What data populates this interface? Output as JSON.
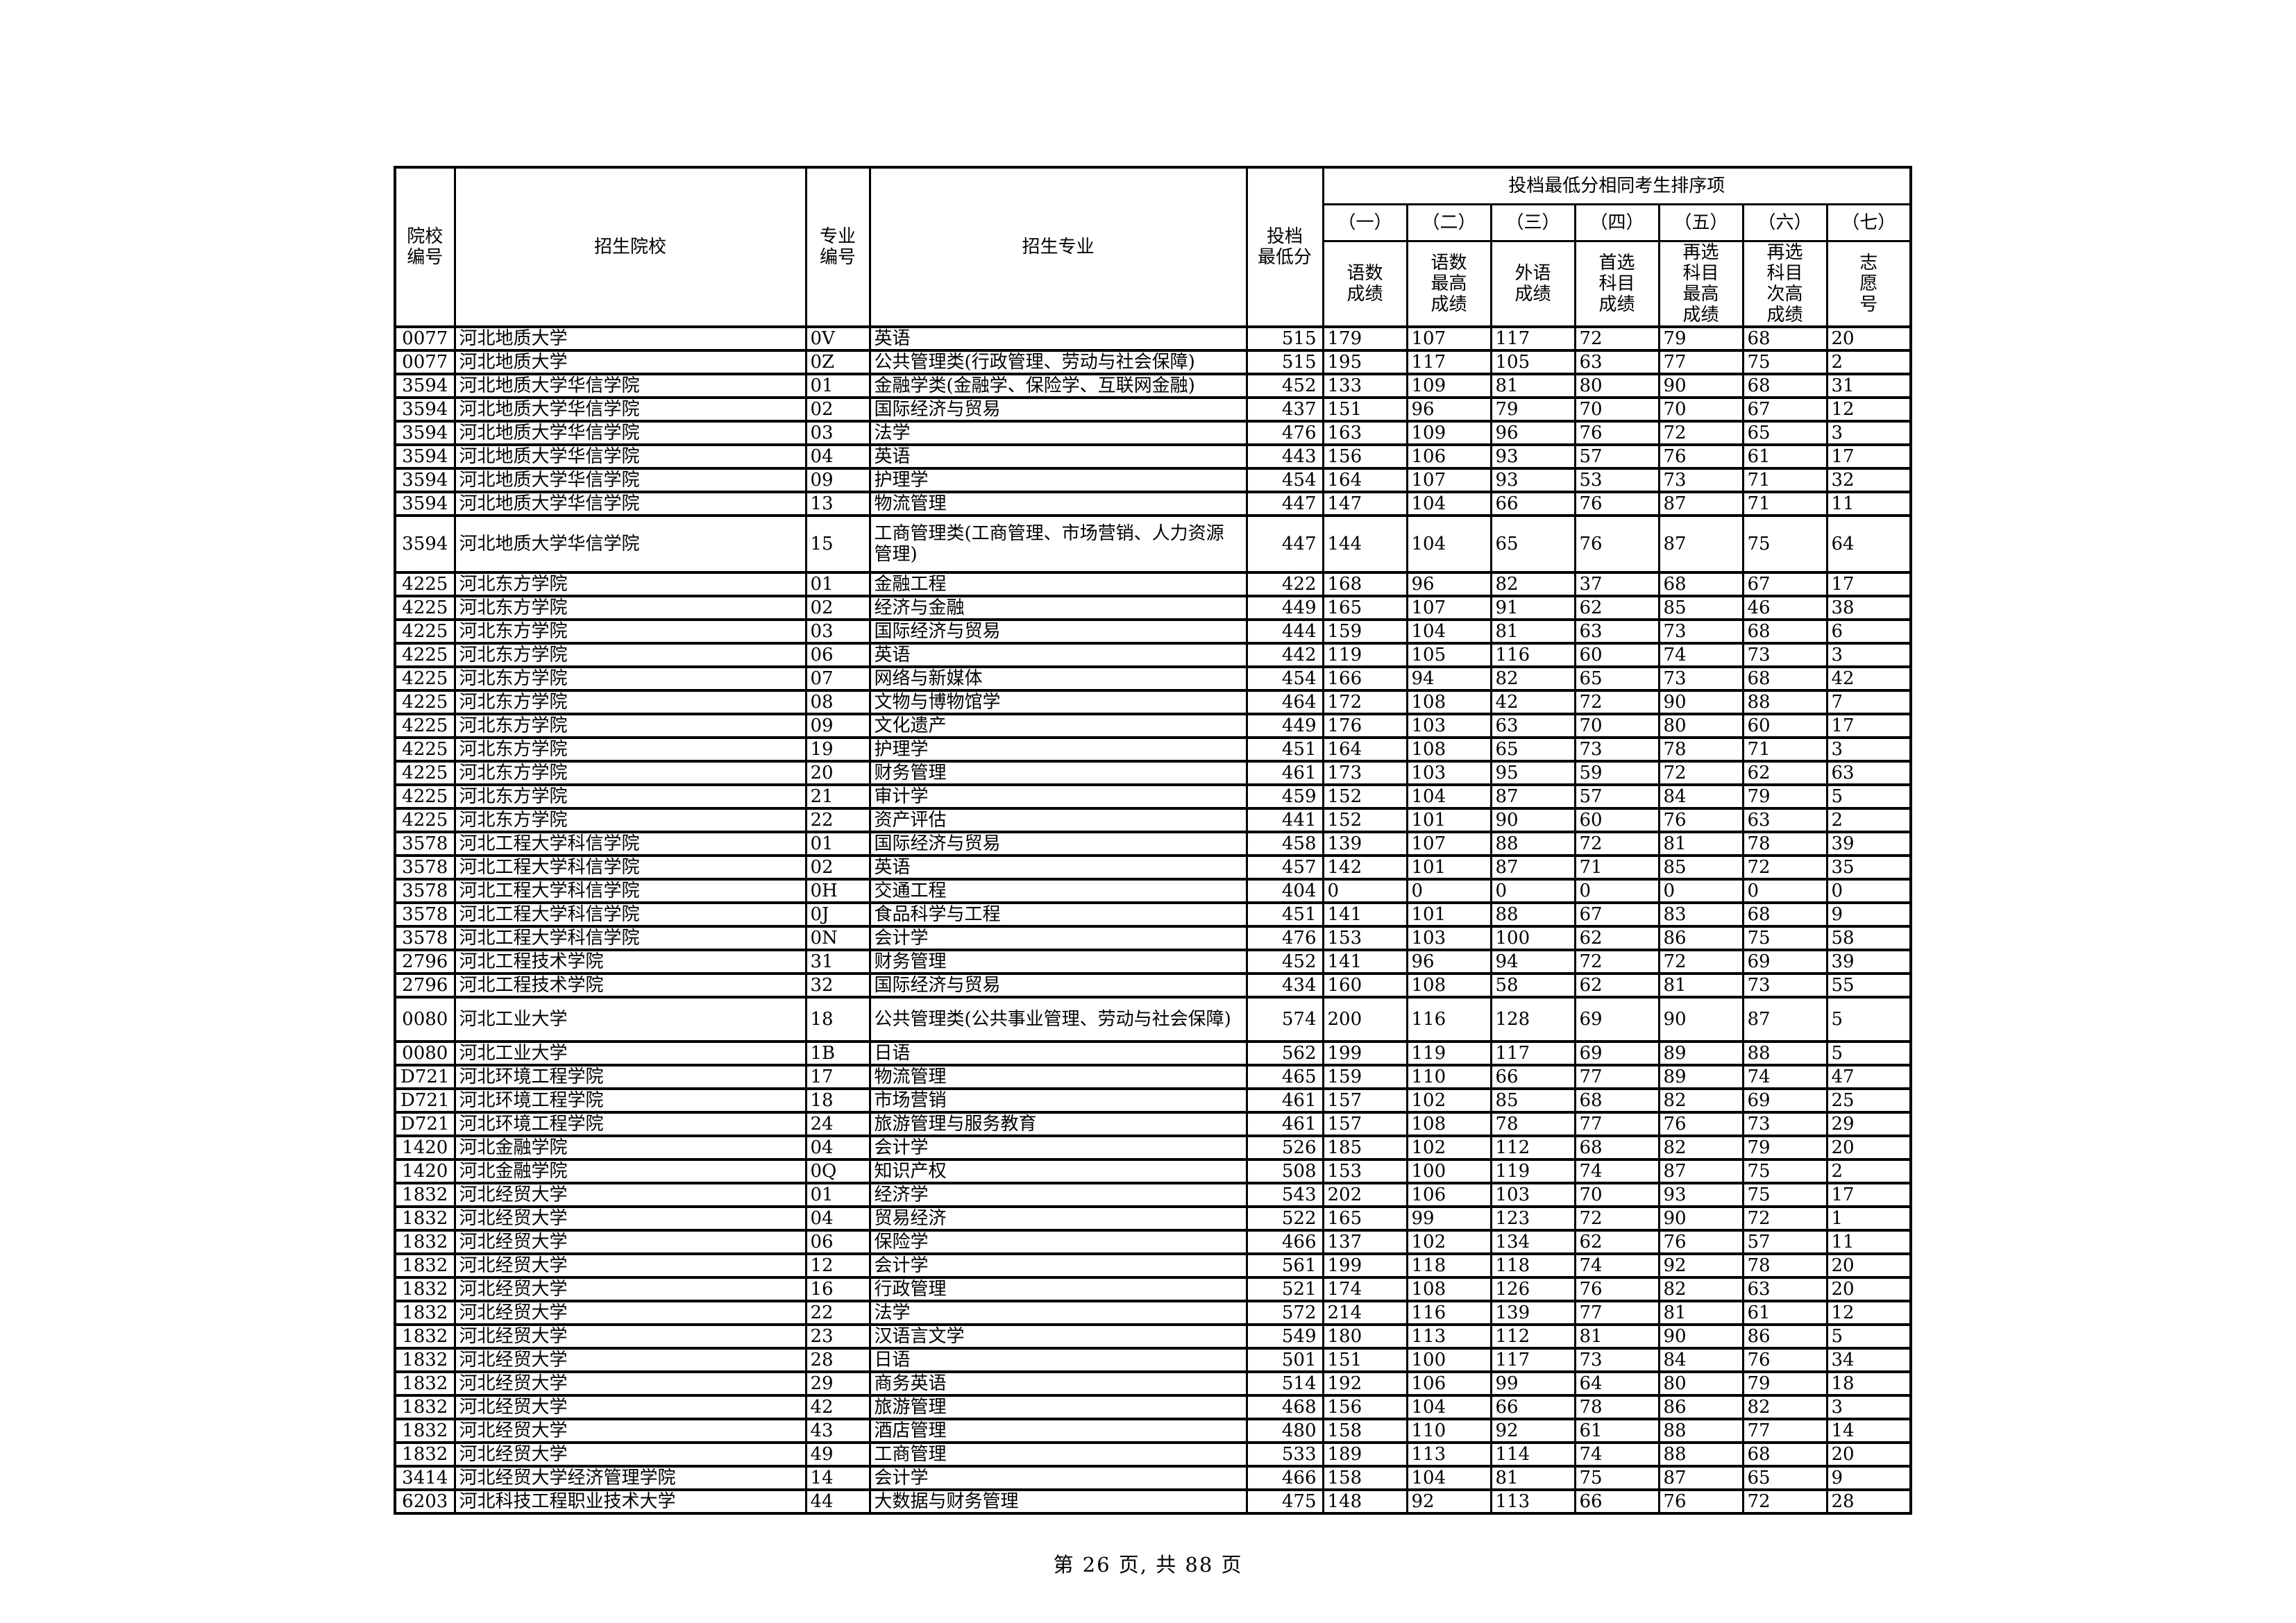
{
  "page": {
    "footer": "第 26 页, 共 88 页"
  },
  "table": {
    "headers": {
      "college_code": "院校\n编号",
      "college_name": "招生院校",
      "major_code": "专业\n编号",
      "major_name": "招生专业",
      "min_score": "投档\n最低分",
      "sort_group_title": "投档最低分相同考生排序项",
      "sort_cols": [
        {
          "num": "（一）",
          "label": "语数\n成绩"
        },
        {
          "num": "（二）",
          "label": "语数\n最高\n成绩"
        },
        {
          "num": "（三）",
          "label": "外语\n成绩"
        },
        {
          "num": "（四）",
          "label": "首选\n科目\n成绩"
        },
        {
          "num": "（五）",
          "label": "再选\n科目\n最高\n成绩"
        },
        {
          "num": "（六）",
          "label": "再选\n科目\n次高\n成绩"
        },
        {
          "num": "（七）",
          "label": "志\n愿\n号"
        }
      ]
    },
    "rows": [
      [
        "0077",
        "河北地质大学",
        "0V",
        "英语",
        "515",
        "179",
        "107",
        "117",
        "72",
        "79",
        "68",
        "20"
      ],
      [
        "0077",
        "河北地质大学",
        "0Z",
        "公共管理类(行政管理、劳动与社会保障)",
        "515",
        "195",
        "117",
        "105",
        "63",
        "77",
        "75",
        "2"
      ],
      [
        "3594",
        "河北地质大学华信学院",
        "01",
        "金融学类(金融学、保险学、互联网金融)",
        "452",
        "133",
        "109",
        "81",
        "80",
        "90",
        "68",
        "31"
      ],
      [
        "3594",
        "河北地质大学华信学院",
        "02",
        "国际经济与贸易",
        "437",
        "151",
        "96",
        "79",
        "70",
        "70",
        "67",
        "12"
      ],
      [
        "3594",
        "河北地质大学华信学院",
        "03",
        "法学",
        "476",
        "163",
        "109",
        "96",
        "76",
        "72",
        "65",
        "3"
      ],
      [
        "3594",
        "河北地质大学华信学院",
        "04",
        "英语",
        "443",
        "156",
        "106",
        "93",
        "57",
        "76",
        "61",
        "17"
      ],
      [
        "3594",
        "河北地质大学华信学院",
        "09",
        "护理学",
        "454",
        "164",
        "107",
        "93",
        "53",
        "73",
        "71",
        "32"
      ],
      [
        "3594",
        "河北地质大学华信学院",
        "13",
        "物流管理",
        "447",
        "147",
        "104",
        "66",
        "76",
        "87",
        "71",
        "11"
      ],
      [
        "3594",
        "河北地质大学华信学院",
        "15",
        "工商管理类(工商管理、市场营销、人力资源管理)",
        "447",
        "144",
        "104",
        "65",
        "76",
        "87",
        "75",
        "64"
      ],
      [
        "4225",
        "河北东方学院",
        "01",
        "金融工程",
        "422",
        "168",
        "96",
        "82",
        "37",
        "68",
        "67",
        "17"
      ],
      [
        "4225",
        "河北东方学院",
        "02",
        "经济与金融",
        "449",
        "165",
        "107",
        "91",
        "62",
        "85",
        "46",
        "38"
      ],
      [
        "4225",
        "河北东方学院",
        "03",
        "国际经济与贸易",
        "444",
        "159",
        "104",
        "81",
        "63",
        "73",
        "68",
        "6"
      ],
      [
        "4225",
        "河北东方学院",
        "06",
        "英语",
        "442",
        "119",
        "105",
        "116",
        "60",
        "74",
        "73",
        "3"
      ],
      [
        "4225",
        "河北东方学院",
        "07",
        "网络与新媒体",
        "454",
        "166",
        "94",
        "82",
        "65",
        "73",
        "68",
        "42"
      ],
      [
        "4225",
        "河北东方学院",
        "08",
        "文物与博物馆学",
        "464",
        "172",
        "108",
        "42",
        "72",
        "90",
        "88",
        "7"
      ],
      [
        "4225",
        "河北东方学院",
        "09",
        "文化遗产",
        "449",
        "176",
        "103",
        "63",
        "70",
        "80",
        "60",
        "17"
      ],
      [
        "4225",
        "河北东方学院",
        "19",
        "护理学",
        "451",
        "164",
        "108",
        "65",
        "73",
        "78",
        "71",
        "3"
      ],
      [
        "4225",
        "河北东方学院",
        "20",
        "财务管理",
        "461",
        "173",
        "103",
        "95",
        "59",
        "72",
        "62",
        "63"
      ],
      [
        "4225",
        "河北东方学院",
        "21",
        "审计学",
        "459",
        "152",
        "104",
        "87",
        "57",
        "84",
        "79",
        "5"
      ],
      [
        "4225",
        "河北东方学院",
        "22",
        "资产评估",
        "441",
        "152",
        "101",
        "90",
        "60",
        "76",
        "63",
        "2"
      ],
      [
        "3578",
        "河北工程大学科信学院",
        "01",
        "国际经济与贸易",
        "458",
        "139",
        "107",
        "88",
        "72",
        "81",
        "78",
        "39"
      ],
      [
        "3578",
        "河北工程大学科信学院",
        "02",
        "英语",
        "457",
        "142",
        "101",
        "87",
        "71",
        "85",
        "72",
        "35"
      ],
      [
        "3578",
        "河北工程大学科信学院",
        "0H",
        "交通工程",
        "404",
        "0",
        "0",
        "0",
        "0",
        "0",
        "0",
        "0"
      ],
      [
        "3578",
        "河北工程大学科信学院",
        "0J",
        "食品科学与工程",
        "451",
        "141",
        "101",
        "88",
        "67",
        "83",
        "68",
        "9"
      ],
      [
        "3578",
        "河北工程大学科信学院",
        "0N",
        "会计学",
        "476",
        "153",
        "103",
        "100",
        "62",
        "86",
        "75",
        "58"
      ],
      [
        "2796",
        "河北工程技术学院",
        "31",
        "财务管理",
        "452",
        "141",
        "96",
        "94",
        "72",
        "72",
        "69",
        "39"
      ],
      [
        "2796",
        "河北工程技术学院",
        "32",
        "国际经济与贸易",
        "434",
        "160",
        "108",
        "58",
        "62",
        "81",
        "73",
        "55"
      ],
      [
        "0080",
        "河北工业大学",
        "18",
        "公共管理类(公共事业管理、劳动与社会保障)",
        "574",
        "200",
        "116",
        "128",
        "69",
        "90",
        "87",
        "5"
      ],
      [
        "0080",
        "河北工业大学",
        "1B",
        "日语",
        "562",
        "199",
        "119",
        "117",
        "69",
        "89",
        "88",
        "5"
      ],
      [
        "D721",
        "河北环境工程学院",
        "17",
        "物流管理",
        "465",
        "159",
        "110",
        "66",
        "77",
        "89",
        "74",
        "47"
      ],
      [
        "D721",
        "河北环境工程学院",
        "18",
        "市场营销",
        "461",
        "157",
        "102",
        "85",
        "68",
        "82",
        "69",
        "25"
      ],
      [
        "D721",
        "河北环境工程学院",
        "24",
        "旅游管理与服务教育",
        "461",
        "157",
        "108",
        "78",
        "77",
        "76",
        "73",
        "29"
      ],
      [
        "1420",
        "河北金融学院",
        "04",
        "会计学",
        "526",
        "185",
        "102",
        "112",
        "68",
        "82",
        "79",
        "20"
      ],
      [
        "1420",
        "河北金融学院",
        "0Q",
        "知识产权",
        "508",
        "153",
        "100",
        "119",
        "74",
        "87",
        "75",
        "2"
      ],
      [
        "1832",
        "河北经贸大学",
        "01",
        "经济学",
        "543",
        "202",
        "106",
        "103",
        "70",
        "93",
        "75",
        "17"
      ],
      [
        "1832",
        "河北经贸大学",
        "04",
        "贸易经济",
        "522",
        "165",
        "99",
        "123",
        "72",
        "90",
        "72",
        "1"
      ],
      [
        "1832",
        "河北经贸大学",
        "06",
        "保险学",
        "466",
        "137",
        "102",
        "134",
        "62",
        "76",
        "57",
        "11"
      ],
      [
        "1832",
        "河北经贸大学",
        "12",
        "会计学",
        "561",
        "199",
        "118",
        "118",
        "74",
        "92",
        "78",
        "20"
      ],
      [
        "1832",
        "河北经贸大学",
        "16",
        "行政管理",
        "521",
        "174",
        "108",
        "126",
        "76",
        "82",
        "63",
        "20"
      ],
      [
        "1832",
        "河北经贸大学",
        "22",
        "法学",
        "572",
        "214",
        "116",
        "139",
        "77",
        "81",
        "61",
        "12"
      ],
      [
        "1832",
        "河北经贸大学",
        "23",
        "汉语言文学",
        "549",
        "180",
        "113",
        "112",
        "81",
        "90",
        "86",
        "5"
      ],
      [
        "1832",
        "河北经贸大学",
        "28",
        "日语",
        "501",
        "151",
        "100",
        "117",
        "73",
        "84",
        "76",
        "34"
      ],
      [
        "1832",
        "河北经贸大学",
        "29",
        "商务英语",
        "514",
        "192",
        "106",
        "99",
        "64",
        "80",
        "79",
        "18"
      ],
      [
        "1832",
        "河北经贸大学",
        "42",
        "旅游管理",
        "468",
        "156",
        "104",
        "66",
        "78",
        "86",
        "82",
        "3"
      ],
      [
        "1832",
        "河北经贸大学",
        "43",
        "酒店管理",
        "480",
        "158",
        "110",
        "92",
        "61",
        "88",
        "77",
        "14"
      ],
      [
        "1832",
        "河北经贸大学",
        "49",
        "工商管理",
        "533",
        "189",
        "113",
        "114",
        "74",
        "88",
        "68",
        "20"
      ],
      [
        "3414",
        "河北经贸大学经济管理学院",
        "14",
        "会计学",
        "466",
        "158",
        "104",
        "81",
        "75",
        "87",
        "65",
        "9"
      ],
      [
        "6203",
        "河北科技工程职业技术大学",
        "44",
        "大数据与财务管理",
        "475",
        "148",
        "92",
        "113",
        "66",
        "76",
        "72",
        "28"
      ]
    ]
  }
}
